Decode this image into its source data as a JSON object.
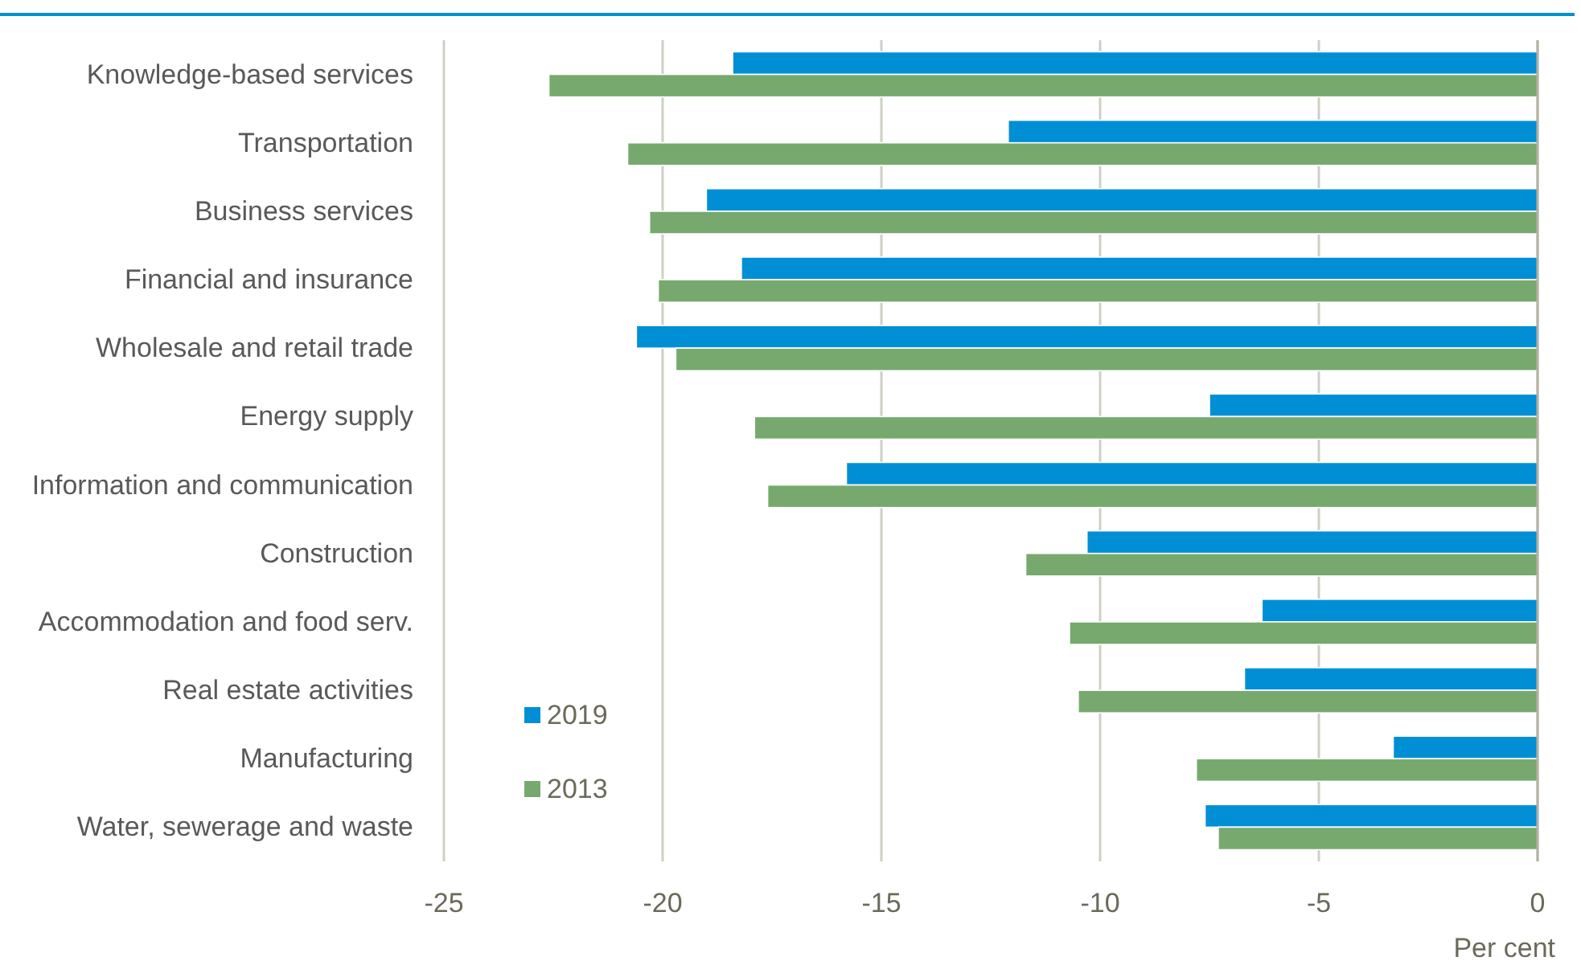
{
  "chart_data": {
    "type": "bar",
    "orientation": "horizontal",
    "categories": [
      "Knowledge-based services",
      "Transportation",
      "Business services",
      "Financial and insurance",
      "Wholesale and retail trade",
      "Energy supply",
      "Information and communication",
      "Construction",
      "Accommodation and food serv.",
      "Real estate activities",
      "Manufacturing",
      "Water, sewerage and waste"
    ],
    "series": [
      {
        "name": "2019",
        "color": "#008fd5",
        "values": [
          -18.4,
          -12.1,
          -19.0,
          -18.2,
          -20.6,
          -7.5,
          -15.8,
          -10.3,
          -6.3,
          -6.7,
          -3.3,
          -7.6
        ]
      },
      {
        "name": "2013",
        "color": "#77a96f",
        "values": [
          -22.6,
          -20.8,
          -20.3,
          -20.1,
          -19.7,
          -17.9,
          -17.6,
          -11.7,
          -10.7,
          -10.5,
          -7.8,
          -7.3
        ]
      }
    ],
    "xlim": [
      -25,
      0
    ],
    "xticks": [
      -25,
      -20,
      -15,
      -10,
      -5,
      0
    ],
    "xlabel": "Per cent",
    "grid": "x",
    "legend": "bottom left"
  }
}
